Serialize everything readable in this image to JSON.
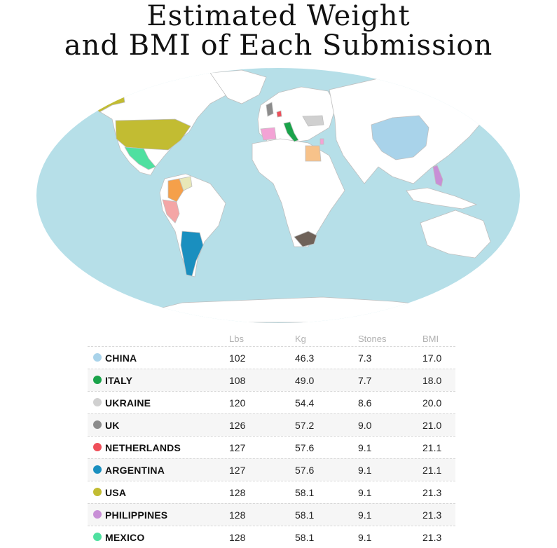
{
  "title": {
    "line1": "Estimated Weight",
    "line2": "and BMI of Each Submission"
  },
  "colors": {
    "ocean": "#b6dfe8",
    "land": "#ffffff",
    "border": "#bfbfbf"
  },
  "table": {
    "headers": [
      "Lbs",
      "Kg",
      "Stones",
      "BMI"
    ],
    "rows": [
      {
        "country": "CHINA",
        "lbs": "102",
        "kg": "46.3",
        "stones": "7.3",
        "bmi": "17.0",
        "color": "#a9d3ea"
      },
      {
        "country": "ITALY",
        "lbs": "108",
        "kg": "49.0",
        "stones": "7.7",
        "bmi": "18.0",
        "color": "#1aa34a"
      },
      {
        "country": "UKRAINE",
        "lbs": "120",
        "kg": "54.4",
        "stones": "8.6",
        "bmi": "20.0",
        "color": "#d0d0d0"
      },
      {
        "country": "UK",
        "lbs": "126",
        "kg": "57.2",
        "stones": "9.0",
        "bmi": "21.0",
        "color": "#8c8c8c"
      },
      {
        "country": "NETHERLANDS",
        "lbs": "127",
        "kg": "57.6",
        "stones": "9.1",
        "bmi": "21.1",
        "color": "#ef4f5a"
      },
      {
        "country": "ARGENTINA",
        "lbs": "127",
        "kg": "57.6",
        "stones": "9.1",
        "bmi": "21.1",
        "color": "#1a8fbf"
      },
      {
        "country": "USA",
        "lbs": "128",
        "kg": "58.1",
        "stones": "9.1",
        "bmi": "21.3",
        "color": "#c2bc32"
      },
      {
        "country": "PHILIPPINES",
        "lbs": "128",
        "kg": "58.1",
        "stones": "9.1",
        "bmi": "21.3",
        "color": "#c88fd6"
      },
      {
        "country": "MEXICO",
        "lbs": "128",
        "kg": "58.1",
        "stones": "9.1",
        "bmi": "21.3",
        "color": "#4fe0a0"
      }
    ]
  }
}
